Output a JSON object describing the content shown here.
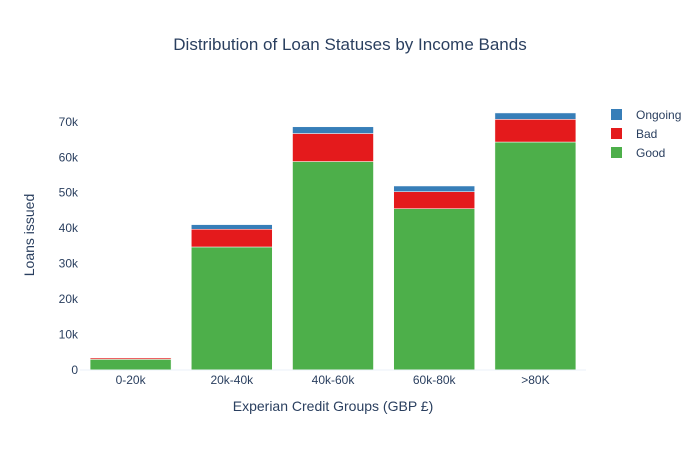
{
  "chart_data": {
    "type": "bar",
    "stacked": true,
    "title": "Distribution of Loan Statuses by Income Bands",
    "xlabel": "Experian Credit Groups (GBP £)",
    "ylabel": "Loans issued",
    "categories": [
      "0-20k",
      "20k-40k",
      "40k-60k",
      "60k-80k",
      ">80K"
    ],
    "series": [
      {
        "name": "Good",
        "color": "#4daf4a",
        "values": [
          3000,
          34700,
          58800,
          45500,
          64300
        ]
      },
      {
        "name": "Bad",
        "color": "#e41a1c",
        "values": [
          400,
          5000,
          7900,
          4800,
          6400
        ]
      },
      {
        "name": "Ongoing",
        "color": "#377eb8",
        "values": [
          100,
          1300,
          1900,
          1600,
          1800
        ]
      }
    ],
    "ylim": [
      0,
      77000
    ],
    "yticks": [
      0,
      10000,
      20000,
      30000,
      40000,
      50000,
      60000,
      70000
    ],
    "ytick_labels": [
      "0",
      "10k",
      "20k",
      "30k",
      "40k",
      "50k",
      "60k",
      "70k"
    ],
    "legend_order": [
      "Ongoing",
      "Bad",
      "Good"
    ],
    "legend_position": "top-right",
    "grid": false
  }
}
